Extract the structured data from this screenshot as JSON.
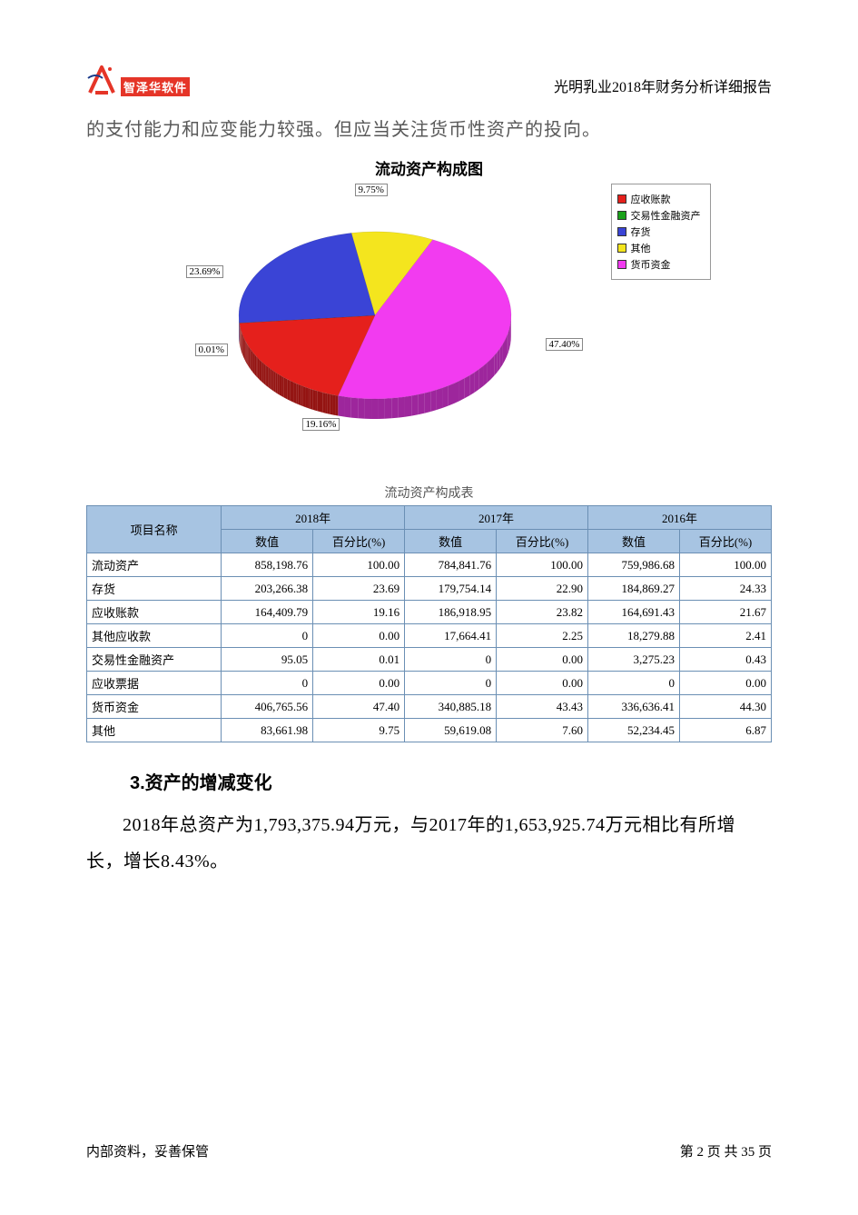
{
  "header": {
    "logo_text": "智泽华软件",
    "doc_title": "光明乳业2018年财务分析详细报告"
  },
  "intro_text": "的支付能力和应变能力较强。但应当关注货币性资产的投向。",
  "chart": {
    "type": "pie",
    "title": "流动资产构成图",
    "background_color": "#ffffff",
    "slices": [
      {
        "label": "应收账款",
        "value": 19.16,
        "color": "#e5201c",
        "callout": "19.16%"
      },
      {
        "label": "交易性金融资产",
        "value": 0.01,
        "color": "#1aa11a",
        "callout": "0.01%"
      },
      {
        "label": "存货",
        "value": 23.69,
        "color": "#3a44d6",
        "callout": "23.69%"
      },
      {
        "label": "其他",
        "value": 9.75,
        "color": "#f4e51e",
        "callout": "9.75%"
      },
      {
        "label": "货币资金",
        "value": 47.4,
        "color": "#f23bf0",
        "callout": "47.40%"
      }
    ],
    "legend_border": "#999999",
    "label_fontsize": 11
  },
  "table": {
    "caption": "流动资产构成表",
    "header_bg": "#a7c4e2",
    "border_color": "#6b8fb4",
    "col_groups": [
      "2018年",
      "2017年",
      "2016年"
    ],
    "sub_cols": [
      "数值",
      "百分比(%)"
    ],
    "row_header": "项目名称",
    "rows": [
      {
        "name": "流动资产",
        "v": [
          "858,198.76",
          "100.00",
          "784,841.76",
          "100.00",
          "759,986.68",
          "100.00"
        ]
      },
      {
        "name": "存货",
        "v": [
          "203,266.38",
          "23.69",
          "179,754.14",
          "22.90",
          "184,869.27",
          "24.33"
        ]
      },
      {
        "name": "应收账款",
        "v": [
          "164,409.79",
          "19.16",
          "186,918.95",
          "23.82",
          "164,691.43",
          "21.67"
        ]
      },
      {
        "name": "其他应收款",
        "v": [
          "0",
          "0.00",
          "17,664.41",
          "2.25",
          "18,279.88",
          "2.41"
        ]
      },
      {
        "name": "交易性金融资产",
        "v": [
          "95.05",
          "0.01",
          "0",
          "0.00",
          "3,275.23",
          "0.43"
        ]
      },
      {
        "name": "应收票据",
        "v": [
          "0",
          "0.00",
          "0",
          "0.00",
          "0",
          "0.00"
        ]
      },
      {
        "name": "货币资金",
        "v": [
          "406,765.56",
          "47.40",
          "340,885.18",
          "43.43",
          "336,636.41",
          "44.30"
        ]
      },
      {
        "name": "其他",
        "v": [
          "83,661.98",
          "9.75",
          "59,619.08",
          "7.60",
          "52,234.45",
          "6.87"
        ]
      }
    ]
  },
  "section": {
    "heading": "3.资产的增减变化",
    "paragraph": "2018年总资产为1,793,375.94万元，与2017年的1,653,925.74万元相比有所增长，增长8.43%。"
  },
  "footer": {
    "left": "内部资料，妥善保管",
    "right_prefix": "第 ",
    "page_cur": "2",
    "right_mid": " 页   共 ",
    "page_total": "35",
    "right_suffix": " 页"
  }
}
